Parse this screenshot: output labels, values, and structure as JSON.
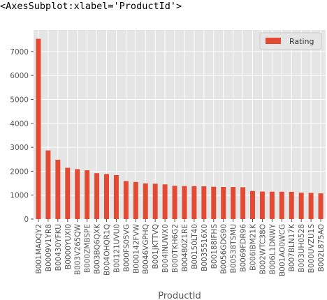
{
  "output_repr": "<AxesSubplot:xlabel='ProductId'>",
  "chart_data": {
    "type": "bar",
    "xlabel": "ProductId",
    "ylabel": "",
    "ylim": [
      0,
      7900
    ],
    "yticks": [
      0,
      1000,
      2000,
      3000,
      4000,
      5000,
      6000,
      7000
    ],
    "grid": true,
    "legend_position": "top-right",
    "categories": [
      "B001MA0QY2",
      "B0009V1YR8",
      "B00430YFKU",
      "B0000YUXI0",
      "B003V265QW",
      "B000ZMBSPE",
      "B003BQ6QXK",
      "B004OHQR1Q",
      "B00121UVU0",
      "B000FS05VG",
      "B000142FVW",
      "B0046VGPHQ",
      "B001JKTTVQ",
      "B004INUWX0",
      "B000TKH6G2",
      "B00480Z1RE",
      "B00150LT40",
      "B0035516X0",
      "B00188IFHS",
      "B0056GDG90",
      "B00538TSMU",
      "B0069FDR96",
      "B006IBM21K",
      "B002WTC38O",
      "B006L1DNWY",
      "B001AO0WCG",
      "B007BLN17K",
      "B003UH0528",
      "B000UVZU1S",
      "B002L875AO"
    ],
    "series": [
      {
        "name": "Rating",
        "color": "#E24A33",
        "values": [
          7533,
          2869,
          2477,
          2143,
          2088,
          2041,
          1918,
          1885,
          1838,
          1589,
          1550,
          1490,
          1477,
          1450,
          1390,
          1380,
          1375,
          1370,
          1350,
          1340,
          1340,
          1330,
          1175,
          1150,
          1145,
          1143,
          1140,
          1100,
          1095,
          1075
        ]
      }
    ]
  }
}
